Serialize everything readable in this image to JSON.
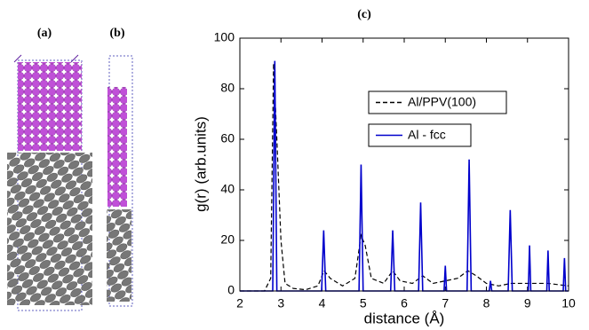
{
  "panels": {
    "a": "(a)",
    "b": "(b)"
  },
  "chart_data": {
    "type": "line",
    "title": "(c)",
    "x_label": "distance (Å)",
    "y_label": "g(r) (arb.units)",
    "xlim": [
      2,
      10
    ],
    "xticks": [
      2,
      3,
      4,
      5,
      6,
      7,
      8,
      9,
      10
    ],
    "ylim": [
      0,
      100
    ],
    "yticks": [
      0,
      20,
      40,
      60,
      80,
      100
    ],
    "series": [
      {
        "name": "Al/PPV(100)",
        "color": "#000000",
        "dash": "dashed",
        "x": [
          2,
          2.6,
          2.75,
          2.82,
          2.9,
          3.0,
          3.1,
          3.3,
          3.6,
          3.9,
          4.05,
          4.2,
          4.5,
          4.8,
          4.95,
          5.05,
          5.2,
          5.5,
          5.72,
          5.9,
          6.2,
          6.45,
          6.7,
          7.0,
          7.3,
          7.55,
          7.75,
          8.0,
          8.3,
          8.6,
          9.0,
          9.5,
          10
        ],
        "values": [
          0,
          0,
          5,
          90,
          60,
          20,
          3,
          1,
          0.5,
          2,
          8,
          5,
          2,
          5,
          22,
          18,
          5,
          3,
          8,
          4,
          3,
          6,
          3,
          4,
          5,
          8,
          6,
          3,
          2,
          3,
          3,
          3,
          2
        ]
      },
      {
        "name": "Al - fcc",
        "color": "#0000cc",
        "dash": "solid",
        "x": [
          2,
          2.8,
          2.85,
          2.9,
          3.99,
          4.04,
          4.09,
          4.9,
          4.95,
          5.0,
          5.67,
          5.72,
          5.77,
          6.35,
          6.4,
          6.45,
          6.97,
          7.0,
          7.03,
          7.53,
          7.58,
          7.63,
          8.07,
          8.1,
          8.13,
          8.53,
          8.58,
          8.63,
          9.02,
          9.05,
          9.08,
          9.47,
          9.5,
          9.53,
          9.87,
          9.9,
          9.93,
          10
        ],
        "values": [
          0,
          0,
          91,
          0,
          0,
          24,
          0,
          0,
          50,
          0,
          0,
          24,
          0,
          0,
          35,
          0,
          0,
          10,
          0,
          0,
          52,
          0,
          0,
          4,
          0,
          0,
          32,
          0,
          0,
          18,
          0,
          0,
          16,
          0,
          0,
          13,
          0,
          0
        ]
      }
    ]
  }
}
